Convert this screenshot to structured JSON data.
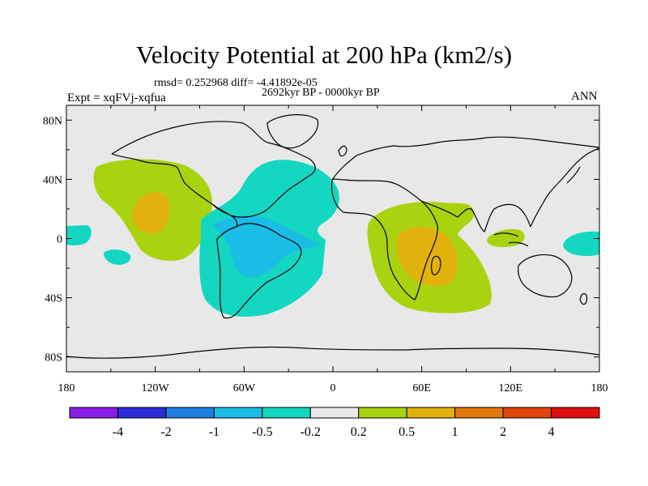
{
  "title": "Velocity Potential at 200 hPa (km2/s)",
  "stats": {
    "rmsd_label": "rmsd=",
    "rmsd": "0.252968",
    "diff_label": "diff=",
    "diff": "-4.41892e-05"
  },
  "period": "2692kyr BP - 0000kyr BP",
  "experiment": "Expt = xqFVj-xqfua",
  "season": "ANN",
  "axes": {
    "y_ticks": [
      "80N",
      "40N",
      "0",
      "40S",
      "80S"
    ],
    "x_ticks": [
      "180",
      "120W",
      "60W",
      "0",
      "60E",
      "120E",
      "180"
    ],
    "lat_range": [
      -90,
      90
    ],
    "lon_range": [
      -180,
      180
    ]
  },
  "colorbar": {
    "labels": [
      "-4",
      "-2",
      "-1",
      "-0.5",
      "-0.2",
      "0.2",
      "0.5",
      "1",
      "2",
      "4"
    ],
    "colors": [
      "#8a1ee6",
      "#2b2bd8",
      "#1f7fe0",
      "#19bde6",
      "#14d7c1",
      "#e8e8e8",
      "#a9d311",
      "#e2b20c",
      "#e07a0c",
      "#e0450c",
      "#e01010"
    ]
  },
  "map_colors": {
    "background": "#e8e8e8",
    "neg_0_2": "#14d7c1",
    "neg_0_5": "#19bde6",
    "pos_0_2": "#a9d311",
    "pos_0_5": "#e2b20c"
  },
  "anomaly_regions": [
    {
      "name": "central-pacific-positive",
      "level": "0.2 to 0.5",
      "center_lon": -125,
      "center_lat": 15
    },
    {
      "name": "central-pacific-core",
      "level": "0.5 to 1",
      "center_lon": -124,
      "center_lat": 12
    },
    {
      "name": "americas-negative",
      "level": "-0.5 to -0.2",
      "center_lon": -55,
      "center_lat": 5
    },
    {
      "name": "amazon-core",
      "level": "-1 to -0.5",
      "center_lon": -58,
      "center_lat": -5
    },
    {
      "name": "africa-indian-ocean-positive",
      "level": "0.2 to 0.5",
      "center_lon": 55,
      "center_lat": -10
    },
    {
      "name": "indian-ocean-core",
      "level": "0.5 to 1",
      "center_lon": 58,
      "center_lat": -8
    },
    {
      "name": "maritime-continent-positive",
      "level": "0.2 to 0.5",
      "center_lon": 122,
      "center_lat": 3
    },
    {
      "name": "west-pacific-negative",
      "level": "-0.5 to -0.2",
      "center_lon": 165,
      "center_lat": -2
    }
  ]
}
